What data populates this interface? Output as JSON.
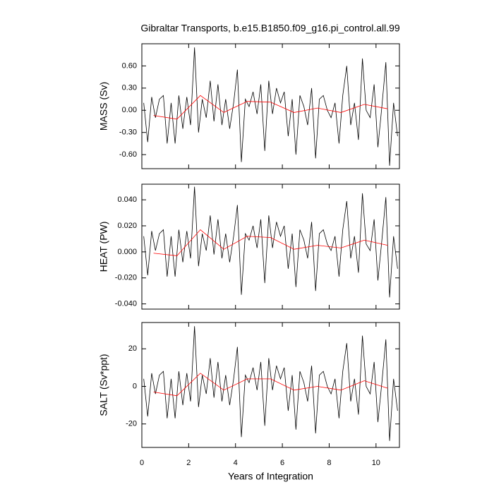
{
  "chart_data": [
    {
      "type": "line",
      "title": "Gibraltar Transports, b.e15.B1850.f09_g16.pi_control.all.99",
      "ylabel": "MASS (Sv)",
      "xlim": [
        0,
        11
      ],
      "xticks": [
        0,
        2,
        4,
        6,
        8,
        10
      ],
      "ylim": [
        -0.79,
        0.9
      ],
      "yticks": [
        {
          "value": -0.6,
          "label": "-0.60"
        },
        {
          "value": -0.3,
          "label": "-0.30"
        },
        {
          "value": 0,
          "label": "0.00"
        },
        {
          "value": 0.3,
          "label": "0.30"
        },
        {
          "value": 0.6,
          "label": "0.60"
        }
      ],
      "series": [
        {
          "color": "#000000",
          "x": [
            0.08,
            0.25,
            0.42,
            0.58,
            0.75,
            0.92,
            1.08,
            1.25,
            1.42,
            1.58,
            1.75,
            1.92,
            2.08,
            2.25,
            2.42,
            2.58,
            2.75,
            2.92,
            3.08,
            3.25,
            3.42,
            3.58,
            3.75,
            3.92,
            4.08,
            4.25,
            4.42,
            4.58,
            4.75,
            4.92,
            5.08,
            5.25,
            5.42,
            5.58,
            5.75,
            5.92,
            6.08,
            6.25,
            6.42,
            6.58,
            6.75,
            6.92,
            7.08,
            7.25,
            7.42,
            7.58,
            7.75,
            7.92,
            8.08,
            8.25,
            8.42,
            8.58,
            8.75,
            8.92,
            9.08,
            9.25,
            9.42,
            9.58,
            9.75,
            9.92,
            10.08,
            10.25,
            10.42,
            10.58,
            10.75,
            10.92
          ],
          "values": [
            0.1,
            -0.43,
            0.18,
            -0.1,
            0.15,
            0.2,
            -0.45,
            0.1,
            -0.45,
            0.2,
            -0.25,
            0.18,
            -0.2,
            0.85,
            -0.3,
            0.15,
            -0.1,
            0.4,
            -0.15,
            0.35,
            -0.2,
            0.15,
            -0.25,
            0.1,
            0.55,
            -0.7,
            0.15,
            0.05,
            0.25,
            -0.05,
            0.35,
            -0.55,
            0.4,
            -0.05,
            0.3,
            0.1,
            0.25,
            -0.35,
            0.15,
            -0.6,
            0.2,
            0.05,
            -0.2,
            0.3,
            -0.65,
            0.15,
            0.2,
            0.0,
            -0.1,
            0.1,
            -0.45,
            0.2,
            0.6,
            -0.2,
            0.1,
            -0.4,
            0.7,
            0.0,
            -0.1,
            0.35,
            -0.5,
            0.05,
            0.65,
            -0.75,
            0.1,
            -0.35
          ]
        },
        {
          "color": "#ff0000",
          "x": [
            0.5,
            1.5,
            2.5,
            3.5,
            4.5,
            5.5,
            6.5,
            7.5,
            8.5,
            9.5,
            10.5
          ],
          "values": [
            -0.07,
            -0.12,
            0.2,
            -0.03,
            0.12,
            0.11,
            -0.03,
            0.03,
            -0.03,
            0.08,
            0.02
          ]
        }
      ]
    },
    {
      "type": "line",
      "ylabel": "HEAT (PW)",
      "xlim": [
        0,
        11
      ],
      "xticks": [
        0,
        2,
        4,
        6,
        8,
        10
      ],
      "ylim": [
        -0.044,
        0.052
      ],
      "yticks": [
        {
          "value": -0.04,
          "label": "-0.040"
        },
        {
          "value": -0.02,
          "label": "-0.020"
        },
        {
          "value": 0,
          "label": "0.000"
        },
        {
          "value": 0.02,
          "label": "0.020"
        },
        {
          "value": 0.04,
          "label": "0.040"
        }
      ],
      "series": [
        {
          "color": "#000000",
          "x": [
            0.08,
            0.25,
            0.42,
            0.58,
            0.75,
            0.92,
            1.08,
            1.25,
            1.42,
            1.58,
            1.75,
            1.92,
            2.08,
            2.25,
            2.42,
            2.58,
            2.75,
            2.92,
            3.08,
            3.25,
            3.42,
            3.58,
            3.75,
            3.92,
            4.08,
            4.25,
            4.42,
            4.58,
            4.75,
            4.92,
            5.08,
            5.25,
            5.42,
            5.58,
            5.75,
            5.92,
            6.08,
            6.25,
            6.42,
            6.58,
            6.75,
            6.92,
            7.08,
            7.25,
            7.42,
            7.58,
            7.75,
            7.92,
            8.08,
            8.25,
            8.42,
            8.58,
            8.75,
            8.92,
            9.08,
            9.25,
            9.42,
            9.58,
            9.75,
            9.92,
            10.08,
            10.25,
            10.42,
            10.58,
            10.75,
            10.92
          ],
          "values": [
            0.012,
            -0.018,
            0.016,
            0.001,
            0.014,
            0.017,
            -0.019,
            0.012,
            -0.019,
            0.017,
            -0.008,
            0.016,
            -0.005,
            0.05,
            -0.011,
            0.014,
            0.001,
            0.028,
            -0.002,
            0.025,
            -0.005,
            0.014,
            -0.008,
            0.012,
            0.036,
            -0.033,
            0.014,
            0.009,
            0.02,
            0.003,
            0.025,
            -0.024,
            0.028,
            0.003,
            0.023,
            0.012,
            0.02,
            -0.013,
            0.014,
            -0.027,
            0.017,
            0.009,
            -0.005,
            0.023,
            -0.03,
            0.014,
            0.017,
            0.006,
            0.001,
            0.012,
            -0.019,
            0.017,
            0.039,
            -0.005,
            0.012,
            -0.016,
            0.045,
            0.006,
            0.001,
            0.025,
            -0.022,
            0.009,
            0.042,
            -0.035,
            0.012,
            -0.013
          ]
        },
        {
          "color": "#ff0000",
          "x": [
            0.5,
            1.5,
            2.5,
            3.5,
            4.5,
            5.5,
            6.5,
            7.5,
            8.5,
            9.5,
            10.5
          ],
          "values": [
            -0.001,
            -0.003,
            0.017,
            0.002,
            0.012,
            0.011,
            0.002,
            0.005,
            0.003,
            0.009,
            0.005
          ]
        }
      ]
    },
    {
      "type": "line",
      "ylabel": "SALT (Sv*ppt)",
      "xlabel": "Years of Integration",
      "xlim": [
        0,
        11
      ],
      "xticks": [
        0,
        2,
        4,
        6,
        8,
        10
      ],
      "ylim": [
        -32.5,
        34
      ],
      "yticks": [
        -20,
        0,
        20
      ],
      "series": [
        {
          "color": "#000000",
          "x": [
            0.08,
            0.25,
            0.42,
            0.58,
            0.75,
            0.92,
            1.08,
            1.25,
            1.42,
            1.58,
            1.75,
            1.92,
            2.08,
            2.25,
            2.42,
            2.58,
            2.75,
            2.92,
            3.08,
            3.25,
            3.42,
            3.58,
            3.75,
            3.92,
            4.08,
            4.25,
            4.42,
            4.58,
            4.75,
            4.92,
            5.08,
            5.25,
            5.42,
            5.58,
            5.75,
            5.92,
            6.08,
            6.25,
            6.42,
            6.58,
            6.75,
            6.92,
            7.08,
            7.25,
            7.42,
            7.58,
            7.75,
            7.92,
            8.08,
            8.25,
            8.42,
            8.58,
            8.75,
            8.92,
            9.08,
            9.25,
            9.42,
            9.58,
            9.75,
            9.92,
            10.08,
            10.25,
            10.42,
            10.58,
            10.75,
            10.92
          ],
          "values": [
            4,
            -16,
            7,
            -4,
            6,
            8,
            -17,
            4,
            -17,
            8,
            -10,
            7,
            -8,
            32,
            -11,
            6,
            -4,
            15,
            -6,
            13,
            -8,
            6,
            -10,
            4,
            21,
            -27,
            6,
            2,
            10,
            -2,
            13,
            -21,
            15,
            -2,
            11,
            4,
            10,
            -13,
            6,
            -23,
            8,
            2,
            -8,
            11,
            -25,
            6,
            8,
            0,
            -4,
            4,
            -17,
            8,
            23,
            -8,
            4,
            -15,
            27,
            0,
            -4,
            13,
            -19,
            2,
            25,
            -29,
            4,
            -13
          ]
        },
        {
          "color": "#ff0000",
          "x": [
            0.5,
            1.5,
            2.5,
            3.5,
            4.5,
            5.5,
            6.5,
            7.5,
            8.5,
            9.5,
            10.5
          ],
          "values": [
            -3,
            -5,
            7,
            -2,
            4,
            4,
            -2,
            0,
            -2,
            3,
            -1
          ]
        }
      ]
    }
  ]
}
